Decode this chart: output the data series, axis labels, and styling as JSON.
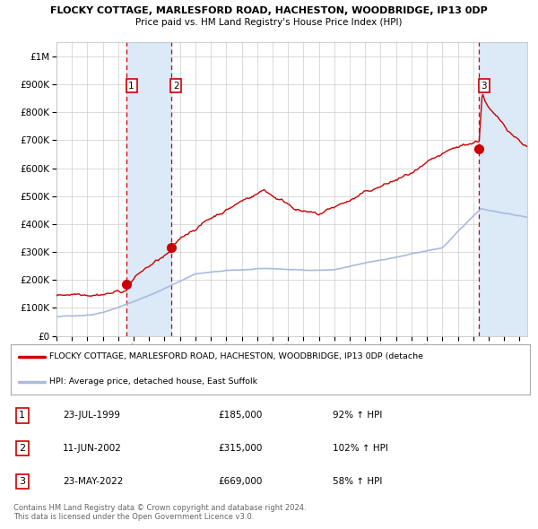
{
  "title1": "FLOCKY COTTAGE, MARLESFORD ROAD, HACHESTON, WOODBRIDGE, IP13 0DP",
  "title2": "Price paid vs. HM Land Registry's House Price Index (HPI)",
  "background_color": "#ffffff",
  "plot_bg_color": "#ffffff",
  "grid_color": "#cccccc",
  "hpi_line_color": "#aabbdd",
  "price_line_color": "#cc0000",
  "sale1_date_x": 1999.556,
  "sale1_price": 185000,
  "sale2_date_x": 2002.441,
  "sale2_price": 315000,
  "sale3_date_x": 2022.389,
  "sale3_price": 669000,
  "shade_color": "#dce9f7",
  "dashed_line_color": "#cc0000",
  "legend_label1": "FLOCKY COTTAGE, MARLESFORD ROAD, HACHESTON, WOODBRIDGE, IP13 0DP (detache",
  "legend_label2": "HPI: Average price, detached house, East Suffolk",
  "table_row1": [
    "1",
    "23-JUL-1999",
    "£185,000",
    "92% ↑ HPI"
  ],
  "table_row2": [
    "2",
    "11-JUN-2002",
    "£315,000",
    "102% ↑ HPI"
  ],
  "table_row3": [
    "3",
    "23-MAY-2022",
    "£669,000",
    "58% ↑ HPI"
  ],
  "footer": "Contains HM Land Registry data © Crown copyright and database right 2024.\nThis data is licensed under the Open Government Licence v3.0.",
  "xmin": 1995.0,
  "xmax": 2025.5,
  "ymin": 0,
  "ymax": 1050000
}
